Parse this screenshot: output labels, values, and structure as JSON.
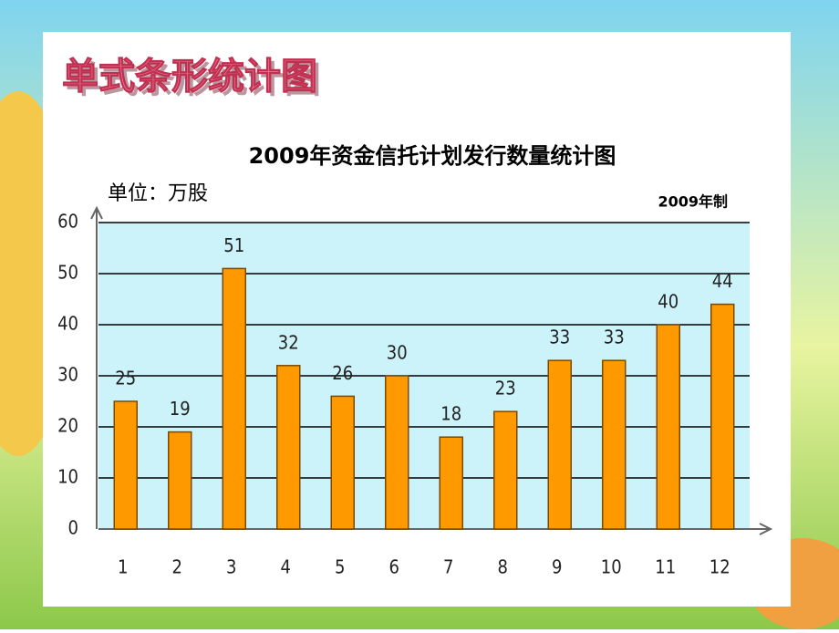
{
  "slide_title": "单式条形统计图",
  "chart_data": {
    "type": "bar",
    "title": "2009年资金信托计划发行数量统计图",
    "unit": "单位：万股",
    "note": "2009年制",
    "categories": [
      "1",
      "2",
      "3",
      "4",
      "5",
      "6",
      "7",
      "8",
      "9",
      "10",
      "11",
      "12"
    ],
    "values": [
      25,
      19,
      51,
      32,
      26,
      30,
      18,
      23,
      33,
      33,
      40,
      44
    ],
    "color": "#ff9900",
    "ylim": [
      0,
      60
    ],
    "yticks": [
      0,
      10,
      20,
      30,
      40,
      50,
      60
    ],
    "grid": true
  }
}
